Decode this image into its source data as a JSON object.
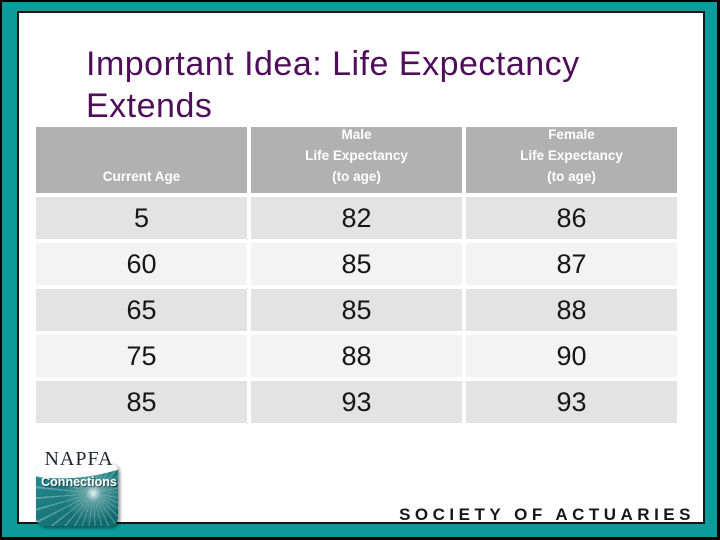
{
  "slide": {
    "title_line1": "Important Idea: Life Expectancy",
    "title_line2": "Extends",
    "colors": {
      "frame_teal": "#0d9b9b",
      "title_purple": "#4f0e5a",
      "header_gray": "#b1b1b1",
      "row_gray": "#e3e3e3",
      "row_light": "#f3f3f3",
      "text_dark": "#161616"
    }
  },
  "table": {
    "headers": [
      {
        "lines": [
          "Current Age"
        ]
      },
      {
        "lines": [
          "Male",
          "Life Expectancy",
          "(to age)"
        ]
      },
      {
        "lines": [
          "Female",
          "Life Expectancy",
          "(to age)"
        ]
      }
    ],
    "rows": [
      [
        "5",
        "82",
        "86"
      ],
      [
        "60",
        "85",
        "87"
      ],
      [
        "65",
        "85",
        "88"
      ],
      [
        "75",
        "88",
        "90"
      ],
      [
        "85",
        "93",
        "93"
      ]
    ]
  },
  "logo": {
    "brand": "NAPFA",
    "sub": "Connections"
  },
  "footer": {
    "org": "SOCIETY OF ACTUARIES"
  }
}
